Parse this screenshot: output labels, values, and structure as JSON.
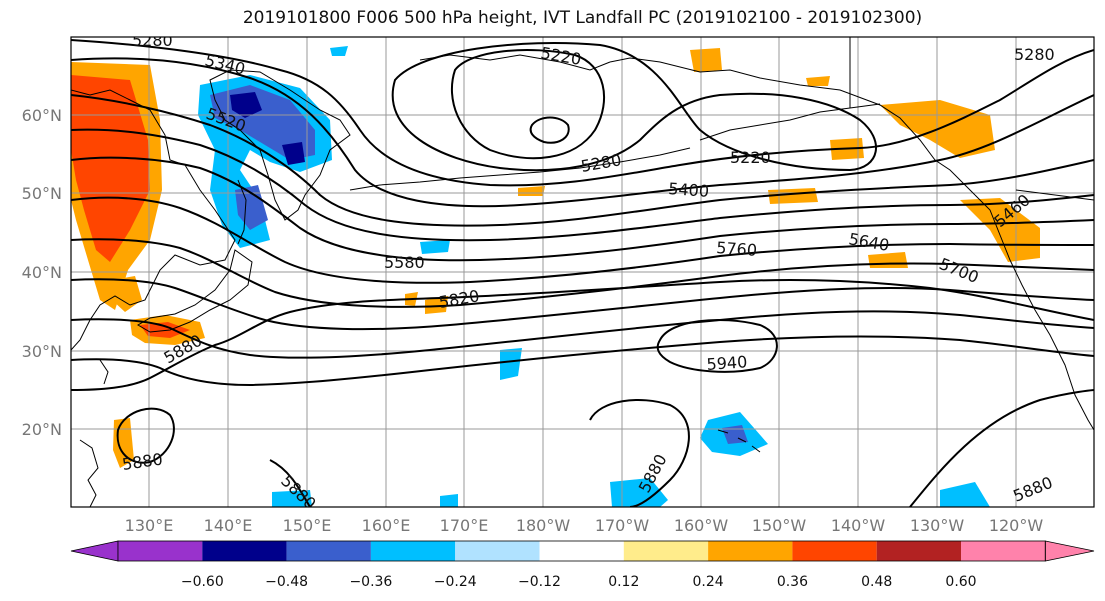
{
  "title": "2019101800 F006 500 hPa height, IVT Landfall PC (2019102100 - 2019102300)",
  "lat_labels": [
    "60°N",
    "50°N",
    "40°N",
    "30°N",
    "20°N"
  ],
  "lon_labels": [
    "130°E",
    "140°E",
    "150°E",
    "160°E",
    "170°E",
    "180°W",
    "170°W",
    "160°W",
    "150°W",
    "140°W",
    "130°W",
    "120°W"
  ],
  "contour_labels": [
    "5280",
    "5340",
    "5220",
    "5280",
    "5520",
    "5280",
    "5220",
    "5400",
    "5580",
    "5760",
    "5640",
    "5460",
    "5700",
    "5820",
    "5880",
    "5940",
    "5880",
    "5880",
    "5880",
    "5880"
  ],
  "colorbar": {
    "ticks": [
      "−0.60",
      "−0.48",
      "−0.36",
      "−0.24",
      "−0.12",
      "0.12",
      "0.24",
      "0.36",
      "0.48",
      "0.60"
    ],
    "colors": [
      "#9932CC",
      "#00008B",
      "#3A5FCD",
      "#00BFFF",
      "#B0E2FF",
      "#FFFFFF",
      "#FFEC8B",
      "#FFA500",
      "#FF4500",
      "#B22222",
      "#FF82AB"
    ]
  },
  "colors": {
    "contour": "#000000",
    "coast": "#000000",
    "grid": "#999999",
    "axis_label": "#777777"
  }
}
